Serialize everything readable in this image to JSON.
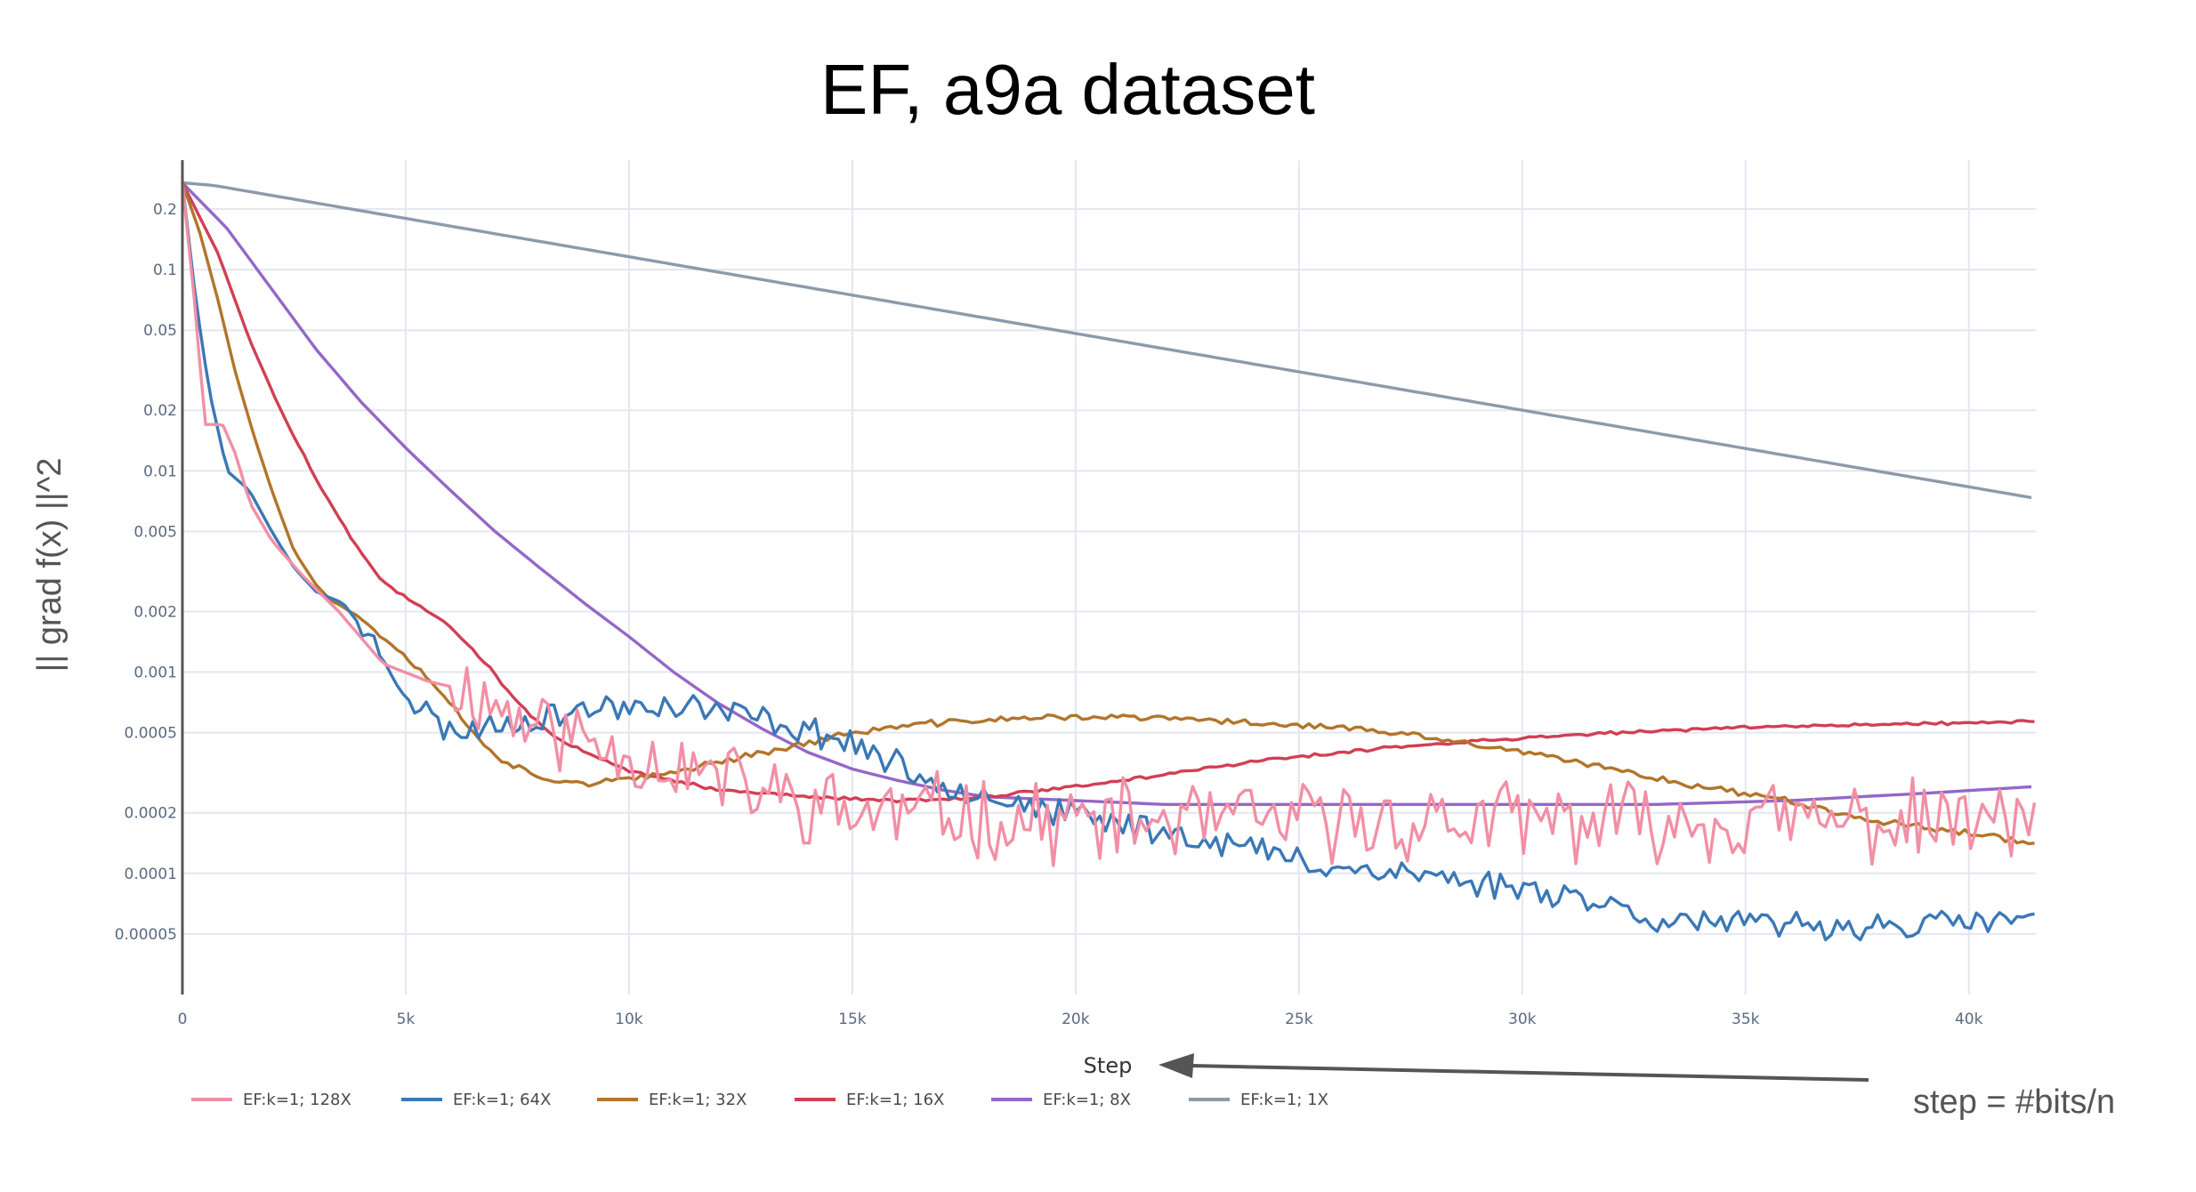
{
  "chart_data": {
    "type": "line",
    "title": "EF, a9a dataset",
    "xlabel": "Step",
    "ylabel": "|| grad f(x) ||^2",
    "ylog": true,
    "xlim": [
      0,
      41500
    ],
    "ylim": [
      2.5e-05,
      0.35
    ],
    "grid": true,
    "legend_position": "bottom-left",
    "x_ticks": [
      {
        "value": 0,
        "label": "0"
      },
      {
        "value": 5000,
        "label": "5k"
      },
      {
        "value": 10000,
        "label": "10k"
      },
      {
        "value": 15000,
        "label": "15k"
      },
      {
        "value": 20000,
        "label": "20k"
      },
      {
        "value": 25000,
        "label": "25k"
      },
      {
        "value": 30000,
        "label": "30k"
      },
      {
        "value": 35000,
        "label": "35k"
      },
      {
        "value": 40000,
        "label": "40k"
      }
    ],
    "y_ticks": [
      {
        "value": 0.2,
        "label": "0.2"
      },
      {
        "value": 0.1,
        "label": "0.1"
      },
      {
        "value": 0.05,
        "label": "0.05"
      },
      {
        "value": 0.02,
        "label": "0.02"
      },
      {
        "value": 0.01,
        "label": "0.01"
      },
      {
        "value": 0.005,
        "label": "0.005"
      },
      {
        "value": 0.002,
        "label": "0.002"
      },
      {
        "value": 0.001,
        "label": "0.001"
      },
      {
        "value": 0.0005,
        "label": "0.0005"
      },
      {
        "value": 0.0002,
        "label": "0.0002"
      },
      {
        "value": 0.0001,
        "label": "0.0001"
      },
      {
        "value": 5e-05,
        "label": "0.00005"
      }
    ],
    "series": [
      {
        "name": "EF:k=1; 128X",
        "color": "#f28fa5",
        "noise": 0.5,
        "seed": 11,
        "noise_from": 6000,
        "points": [
          [
            0,
            0.27
          ],
          [
            300,
            0.06
          ],
          [
            500,
            0.017
          ],
          [
            900,
            0.017
          ],
          [
            1200,
            0.012
          ],
          [
            1500,
            0.007
          ],
          [
            2000,
            0.0045
          ],
          [
            2700,
            0.003
          ],
          [
            3500,
            0.002
          ],
          [
            4500,
            0.0011
          ],
          [
            5500,
            0.0009
          ],
          [
            6500,
            0.0008
          ],
          [
            7500,
            0.0006
          ],
          [
            8500,
            0.0005
          ],
          [
            10000,
            0.0004
          ],
          [
            12000,
            0.0003
          ],
          [
            13000,
            0.00025
          ],
          [
            15000,
            0.0002
          ],
          [
            17000,
            0.0002
          ],
          [
            19000,
            0.00018
          ],
          [
            21000,
            0.00018
          ],
          [
            23000,
            0.00018
          ],
          [
            25000,
            0.00018
          ],
          [
            27000,
            0.00018
          ],
          [
            30000,
            0.00018
          ],
          [
            33000,
            0.00018
          ],
          [
            36000,
            0.00018
          ],
          [
            39000,
            0.00018
          ],
          [
            41500,
            0.00018
          ]
        ]
      },
      {
        "name": "EF:k=1; 64X",
        "color": "#3a78b6",
        "noise": 0.18,
        "seed": 23,
        "noise_from": 4000,
        "points": [
          [
            0,
            0.27
          ],
          [
            300,
            0.07
          ],
          [
            600,
            0.025
          ],
          [
            1000,
            0.01
          ],
          [
            1500,
            0.008
          ],
          [
            2000,
            0.005
          ],
          [
            2500,
            0.0033
          ],
          [
            3000,
            0.0025
          ],
          [
            3600,
            0.0022
          ],
          [
            4500,
            0.0012
          ],
          [
            5200,
            0.0007
          ],
          [
            6000,
            0.0005
          ],
          [
            7000,
            0.00055
          ],
          [
            8000,
            0.0006
          ],
          [
            9000,
            0.00065
          ],
          [
            10500,
            0.0007
          ],
          [
            12000,
            0.00065
          ],
          [
            13500,
            0.00055
          ],
          [
            15000,
            0.00045
          ],
          [
            16500,
            0.0003
          ],
          [
            18000,
            0.00025
          ],
          [
            19500,
            0.0002
          ],
          [
            21500,
            0.00017
          ],
          [
            23500,
            0.00014
          ],
          [
            25500,
            0.00011
          ],
          [
            27500,
            0.0001
          ],
          [
            29000,
            9e-05
          ],
          [
            31000,
            8e-05
          ],
          [
            33000,
            6e-05
          ],
          [
            35000,
            5.5e-05
          ],
          [
            37000,
            5.5e-05
          ],
          [
            39000,
            5.5e-05
          ],
          [
            41500,
            6e-05
          ]
        ]
      },
      {
        "name": "EF:k=1; 32X",
        "color": "#b2752a",
        "noise": 0.04,
        "seed": 37,
        "noise_from": 3000,
        "points": [
          [
            0,
            0.27
          ],
          [
            400,
            0.15
          ],
          [
            800,
            0.07
          ],
          [
            1200,
            0.03
          ],
          [
            1600,
            0.015
          ],
          [
            2000,
            0.008
          ],
          [
            2500,
            0.004
          ],
          [
            3000,
            0.0027
          ],
          [
            3500,
            0.0022
          ],
          [
            4200,
            0.0017
          ],
          [
            5000,
            0.0012
          ],
          [
            5800,
            0.0008
          ],
          [
            6500,
            0.0005
          ],
          [
            7200,
            0.00036
          ],
          [
            8000,
            0.0003
          ],
          [
            9000,
            0.00028
          ],
          [
            10500,
            0.0003
          ],
          [
            12000,
            0.00036
          ],
          [
            13500,
            0.00042
          ],
          [
            15000,
            0.0005
          ],
          [
            16500,
            0.00055
          ],
          [
            18000,
            0.00058
          ],
          [
            20000,
            0.0006
          ],
          [
            22000,
            0.00059
          ],
          [
            24000,
            0.00056
          ],
          [
            26000,
            0.00053
          ],
          [
            28000,
            0.00047
          ],
          [
            30000,
            0.0004
          ],
          [
            32000,
            0.00033
          ],
          [
            34000,
            0.00027
          ],
          [
            36000,
            0.00023
          ],
          [
            38000,
            0.00018
          ],
          [
            40000,
            0.00016
          ],
          [
            41500,
            0.00014
          ]
        ]
      },
      {
        "name": "EF:k=1; 16X",
        "color": "#d23f54",
        "noise": 0.02,
        "seed": 51,
        "noise_from": 2000,
        "points": [
          [
            0,
            0.27
          ],
          [
            800,
            0.12
          ],
          [
            1500,
            0.045
          ],
          [
            2200,
            0.02
          ],
          [
            3000,
            0.009
          ],
          [
            3800,
            0.0045
          ],
          [
            4500,
            0.0028
          ],
          [
            5200,
            0.0022
          ],
          [
            6000,
            0.0017
          ],
          [
            6800,
            0.0011
          ],
          [
            7500,
            0.0007
          ],
          [
            8500,
            0.00045
          ],
          [
            10000,
            0.00032
          ],
          [
            12000,
            0.00026
          ],
          [
            14000,
            0.00024
          ],
          [
            16000,
            0.00023
          ],
          [
            18000,
            0.00024
          ],
          [
            20000,
            0.00027
          ],
          [
            22000,
            0.00031
          ],
          [
            24000,
            0.00036
          ],
          [
            26000,
            0.0004
          ],
          [
            28000,
            0.00044
          ],
          [
            30000,
            0.00047
          ],
          [
            32000,
            0.0005
          ],
          [
            34000,
            0.00052
          ],
          [
            36000,
            0.00054
          ],
          [
            38000,
            0.00055
          ],
          [
            40000,
            0.00056
          ],
          [
            41500,
            0.00057
          ]
        ]
      },
      {
        "name": "EF:k=1; 8X",
        "color": "#9467c8",
        "noise": 0,
        "seed": 63,
        "noise_from": 0,
        "points": [
          [
            0,
            0.27
          ],
          [
            1000,
            0.16
          ],
          [
            2000,
            0.08
          ],
          [
            3000,
            0.04
          ],
          [
            4000,
            0.022
          ],
          [
            5000,
            0.013
          ],
          [
            6000,
            0.008
          ],
          [
            7000,
            0.005
          ],
          [
            8000,
            0.0033
          ],
          [
            9000,
            0.0022
          ],
          [
            10000,
            0.0015
          ],
          [
            11000,
            0.001
          ],
          [
            12000,
            0.0007
          ],
          [
            13000,
            0.00052
          ],
          [
            14000,
            0.0004
          ],
          [
            15000,
            0.00033
          ],
          [
            16000,
            0.00029
          ],
          [
            17000,
            0.00026
          ],
          [
            18000,
            0.00024
          ],
          [
            20000,
            0.00023
          ],
          [
            22000,
            0.00022
          ],
          [
            24000,
            0.00022
          ],
          [
            26000,
            0.00022
          ],
          [
            28000,
            0.00022
          ],
          [
            30000,
            0.00022
          ],
          [
            33000,
            0.00022
          ],
          [
            36000,
            0.00023
          ],
          [
            39000,
            0.00025
          ],
          [
            41500,
            0.00027
          ]
        ]
      },
      {
        "name": "EF:k=1; 1X",
        "color": "#8c9aab",
        "noise": 0,
        "seed": 71,
        "noise_from": 0,
        "points": [
          [
            0,
            0.27
          ],
          [
            700,
            0.262
          ],
          [
            41500,
            0.0073
          ]
        ]
      }
    ]
  },
  "annotation": {
    "text": "step = #bits/n"
  }
}
